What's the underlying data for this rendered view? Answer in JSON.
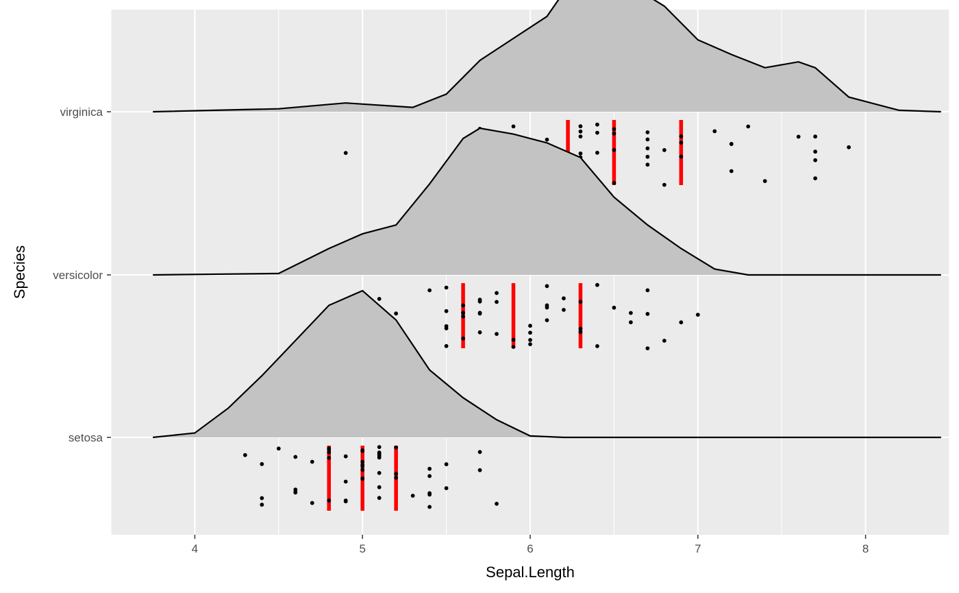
{
  "chart_data": {
    "type": "ridgeline",
    "xlabel": "Sepal.Length",
    "ylabel": "Species",
    "xlim": [
      3.5,
      8.5
    ],
    "x_ticks": [
      "4",
      "5",
      "6",
      "7",
      "8"
    ],
    "categories": [
      "setosa",
      "versicolor",
      "virginica"
    ],
    "quantile_lines": "quartiles (25%, 50%, 75%)",
    "colors": {
      "ridge_fill": "#c3c3c3",
      "ridge_line": "#000000",
      "quantile": "#ff0000",
      "panel": "#ebebeb",
      "grid": "#ffffff",
      "point": "#000000"
    },
    "series": [
      {
        "name": "setosa",
        "density": [
          [
            3.75,
            0.0
          ],
          [
            4.0,
            0.03
          ],
          [
            4.2,
            0.2
          ],
          [
            4.4,
            0.42
          ],
          [
            4.6,
            0.66
          ],
          [
            4.8,
            0.9
          ],
          [
            5.0,
            1.0
          ],
          [
            5.2,
            0.8
          ],
          [
            5.4,
            0.46
          ],
          [
            5.6,
            0.27
          ],
          [
            5.8,
            0.12
          ],
          [
            6.0,
            0.01
          ],
          [
            6.2,
            0.0
          ],
          [
            8.45,
            0.0
          ]
        ],
        "quartiles": [
          4.8,
          5.0,
          5.2
        ],
        "points": [
          4.3,
          4.4,
          4.4,
          4.4,
          4.5,
          4.6,
          4.6,
          4.6,
          4.6,
          4.7,
          4.7,
          4.8,
          4.8,
          4.8,
          4.8,
          4.8,
          4.9,
          4.9,
          4.9,
          4.9,
          5.0,
          5.0,
          5.0,
          5.0,
          5.0,
          5.0,
          5.0,
          5.0,
          5.1,
          5.1,
          5.1,
          5.1,
          5.1,
          5.1,
          5.1,
          5.1,
          5.2,
          5.2,
          5.2,
          5.3,
          5.4,
          5.4,
          5.4,
          5.4,
          5.4,
          5.5,
          5.5,
          5.7,
          5.7,
          5.8
        ]
      },
      {
        "name": "versicolor",
        "density": [
          [
            3.75,
            0.0
          ],
          [
            4.5,
            0.01
          ],
          [
            4.8,
            0.18
          ],
          [
            5.0,
            0.28
          ],
          [
            5.2,
            0.34
          ],
          [
            5.4,
            0.62
          ],
          [
            5.6,
            0.93
          ],
          [
            5.7,
            1.0
          ],
          [
            5.9,
            0.96
          ],
          [
            6.1,
            0.9
          ],
          [
            6.3,
            0.8
          ],
          [
            6.5,
            0.53
          ],
          [
            6.7,
            0.34
          ],
          [
            6.9,
            0.18
          ],
          [
            7.1,
            0.04
          ],
          [
            7.3,
            0.0
          ],
          [
            8.45,
            0.0
          ]
        ],
        "quartiles": [
          5.6,
          5.9,
          6.3
        ],
        "points": [
          4.9,
          5.0,
          5.0,
          5.1,
          5.2,
          5.4,
          5.5,
          5.5,
          5.5,
          5.5,
          5.5,
          5.6,
          5.6,
          5.6,
          5.6,
          5.6,
          5.7,
          5.7,
          5.7,
          5.7,
          5.7,
          5.8,
          5.8,
          5.8,
          5.9,
          5.9,
          6.0,
          6.0,
          6.0,
          6.0,
          6.1,
          6.1,
          6.1,
          6.1,
          6.2,
          6.2,
          6.3,
          6.3,
          6.3,
          6.4,
          6.4,
          6.5,
          6.6,
          6.6,
          6.7,
          6.7,
          6.7,
          6.8,
          6.9,
          7.0
        ]
      },
      {
        "name": "virginica",
        "density": [
          [
            3.75,
            0.0
          ],
          [
            4.5,
            0.02
          ],
          [
            4.9,
            0.06
          ],
          [
            5.3,
            0.03
          ],
          [
            5.5,
            0.12
          ],
          [
            5.7,
            0.35
          ],
          [
            5.9,
            0.5
          ],
          [
            6.1,
            0.65
          ],
          [
            6.3,
            0.98
          ],
          [
            6.4,
            1.0
          ],
          [
            6.6,
            0.86
          ],
          [
            6.8,
            0.72
          ],
          [
            7.0,
            0.49
          ],
          [
            7.2,
            0.39
          ],
          [
            7.4,
            0.3
          ],
          [
            7.6,
            0.34
          ],
          [
            7.7,
            0.3
          ],
          [
            7.9,
            0.1
          ],
          [
            8.2,
            0.01
          ],
          [
            8.45,
            0.0
          ]
        ],
        "quartiles": [
          6.225,
          6.5,
          6.9
        ],
        "points": [
          4.9,
          5.6,
          5.7,
          5.8,
          5.8,
          5.8,
          5.9,
          6.0,
          6.0,
          6.1,
          6.1,
          6.2,
          6.2,
          6.3,
          6.3,
          6.3,
          6.3,
          6.3,
          6.3,
          6.4,
          6.4,
          6.4,
          6.4,
          6.4,
          6.5,
          6.5,
          6.5,
          6.5,
          6.7,
          6.7,
          6.7,
          6.7,
          6.7,
          6.8,
          6.8,
          6.9,
          6.9,
          6.9,
          7.1,
          7.2,
          7.2,
          7.2,
          7.3,
          7.4,
          7.6,
          7.7,
          7.7,
          7.7,
          7.7,
          7.9
        ]
      }
    ]
  }
}
